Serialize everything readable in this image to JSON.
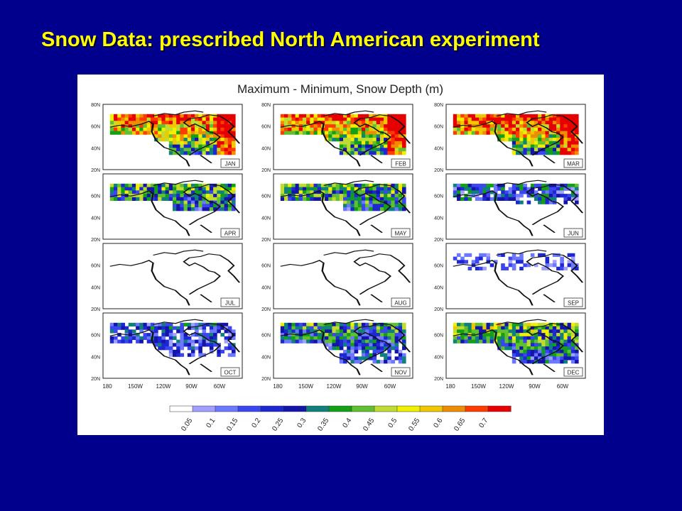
{
  "slide": {
    "title": "Snow Data: prescribed North American experiment"
  },
  "figure": {
    "title": "Maximum - Minimum, Snow Depth (m)"
  },
  "colors": {
    "background": "#00008c",
    "title": "#ffff00"
  },
  "chart_data": {
    "type": "heatmap",
    "title": "Maximum - Minimum, Snow Depth (m)",
    "variable": "Snow Depth (m)",
    "panels": [
      "JAN",
      "FEB",
      "MAR",
      "APR",
      "MAY",
      "JUN",
      "JUL",
      "AUG",
      "SEP",
      "OCT",
      "NOV",
      "DEC"
    ],
    "layout": {
      "rows": 4,
      "cols": 3
    },
    "lat_ticks": [
      "80N",
      "60N",
      "40N",
      "20N"
    ],
    "lon_ticks": [
      "180",
      "150W",
      "120W",
      "90W",
      "60W"
    ],
    "colorbar": {
      "labels": [
        "0.05",
        "0.1",
        "0.15",
        "0.2",
        "0.25",
        "0.3",
        "0.35",
        "0.4",
        "0.45",
        "0.5",
        "0.55",
        "0.6",
        "0.65",
        "0.7"
      ],
      "colors": [
        "#ffffff",
        "#a0a0ff",
        "#6c78ff",
        "#3c46f0",
        "#1e28d2",
        "#1414aa",
        "#10807a",
        "#14a014",
        "#60c030",
        "#c0dc30",
        "#f0f000",
        "#f0c800",
        "#f08c00",
        "#ff3c00",
        "#e60000"
      ]
    },
    "panel_intensity": [
      0.62,
      0.62,
      0.66,
      0.35,
      0.35,
      0.2,
      0,
      0,
      0.05,
      0.16,
      0.3,
      0.4
    ],
    "panel_extent": [
      1,
      1,
      0.95,
      0.55,
      0.55,
      0.3,
      0,
      0,
      0.12,
      0.7,
      1,
      1
    ]
  }
}
